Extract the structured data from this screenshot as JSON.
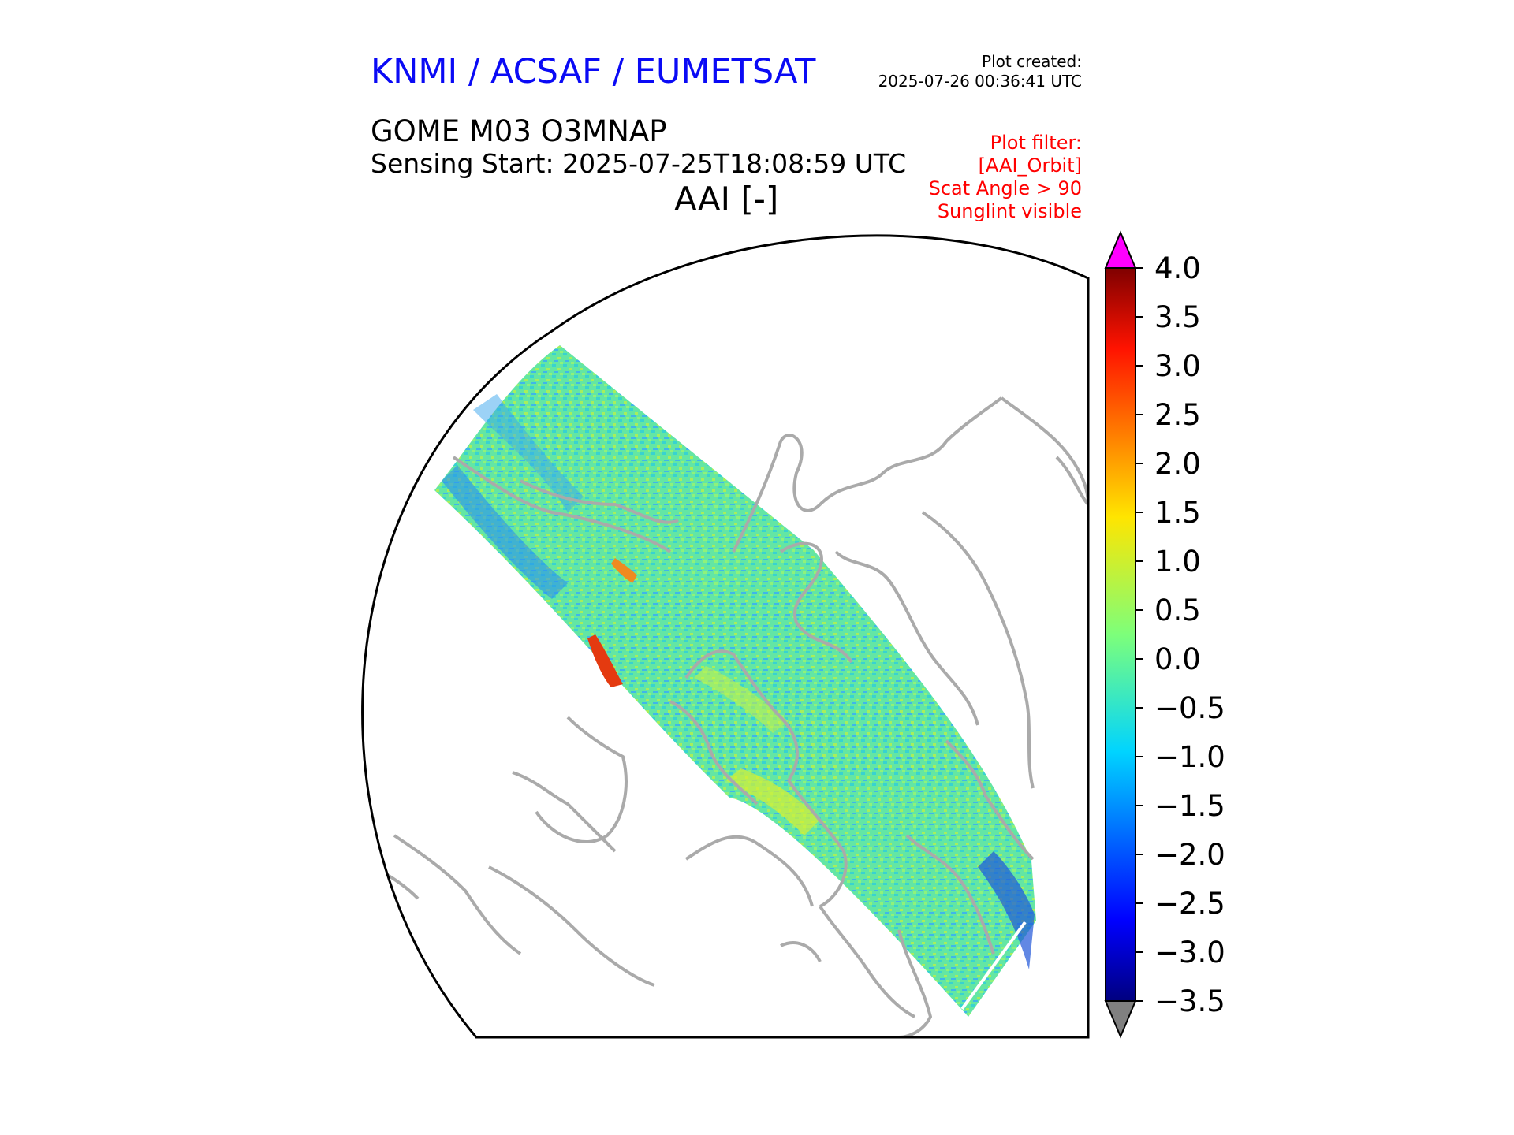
{
  "header": {
    "organization": "KNMI / ACSAF / EUMETSAT",
    "plot_created_label": "Plot created:",
    "plot_created_value": "2025-07-26 00:36:41 UTC",
    "product": "GOME M03 O3MNAP",
    "sensing_start": "Sensing Start: 2025-07-25T18:08:59 UTC",
    "variable_title": "AAI [-]"
  },
  "plot_filter": {
    "label": "Plot filter:",
    "lines": [
      "[AAI_Orbit]",
      "Scat Angle > 90",
      "Sunglint visible"
    ]
  },
  "colorbar": {
    "ticks": [
      "4.0",
      "3.5",
      "3.0",
      "2.5",
      "2.0",
      "1.5",
      "1.0",
      "0.5",
      "0.0",
      "−0.5",
      "−1.0",
      "−1.5",
      "−2.0",
      "−2.5",
      "−3.0",
      "−3.5"
    ],
    "min": -3.5,
    "max": 4.0,
    "over_color": "#ff00ff",
    "under_color": "#808080",
    "colormap": "jet"
  },
  "map": {
    "projection": "north-polar",
    "coastline_color": "#aaaaaa",
    "swath_background_color": "#5fe8a0"
  }
}
